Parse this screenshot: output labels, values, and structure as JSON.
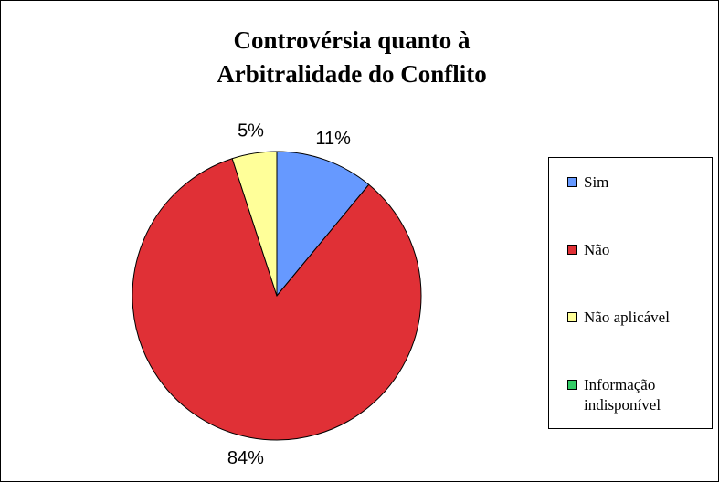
{
  "chart_data": {
    "type": "pie",
    "title": "Controvérsia quanto à Arbitralidade do Conflito",
    "categories": [
      "Sim",
      "Não",
      "Não aplicável",
      "Informação indisponível"
    ],
    "values": [
      11,
      84,
      5,
      0
    ],
    "value_labels": [
      "11%",
      "84%",
      "5%",
      null
    ],
    "colors": [
      "#6699ff",
      "#e03036",
      "#ffff99",
      "#33cc66"
    ],
    "legend": "right"
  }
}
